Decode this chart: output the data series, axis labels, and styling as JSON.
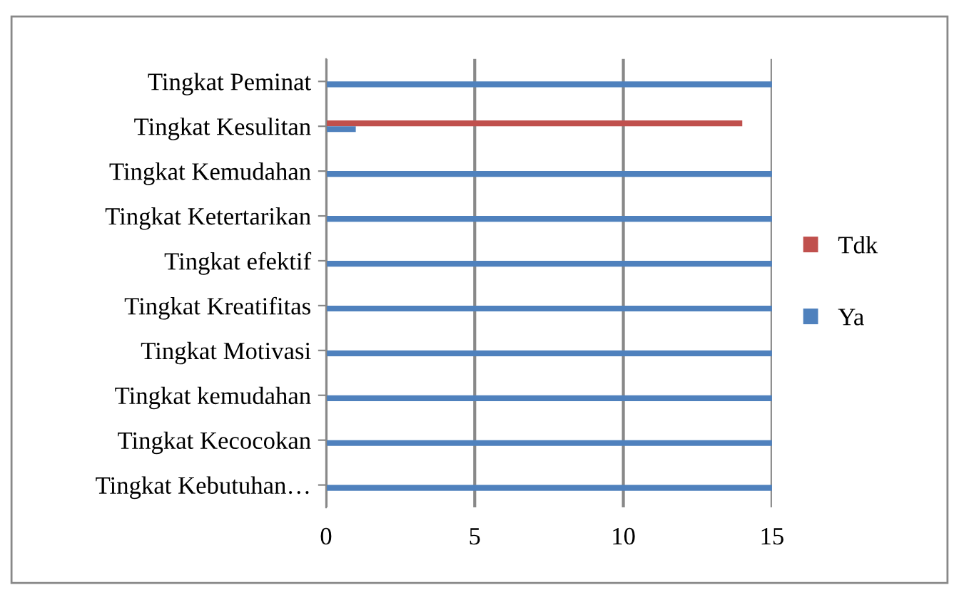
{
  "chart_data": {
    "type": "bar",
    "orientation": "horizontal",
    "categories": [
      "Tingkat Peminat",
      "Tingkat Kesulitan",
      "Tingkat Kemudahan",
      "Tingkat Ketertarikan",
      "Tingkat efektif",
      "Tingkat Kreatifitas",
      "Tingkat Motivasi",
      "Tingkat kemudahan",
      "Tingkat Kecocokan",
      "Tingkat Kebutuhan…"
    ],
    "series": [
      {
        "name": "Tdk",
        "color": "#c0504d",
        "values": [
          0,
          14,
          0,
          0,
          0,
          0,
          0,
          0,
          0,
          0
        ]
      },
      {
        "name": "Ya",
        "color": "#4f81bd",
        "values": [
          15,
          1,
          15,
          15,
          15,
          15,
          15,
          15,
          15,
          15
        ]
      }
    ],
    "xlim": [
      0,
      15
    ],
    "xticks": [
      0,
      5,
      10,
      15
    ],
    "grid": "x",
    "legend": "right"
  }
}
